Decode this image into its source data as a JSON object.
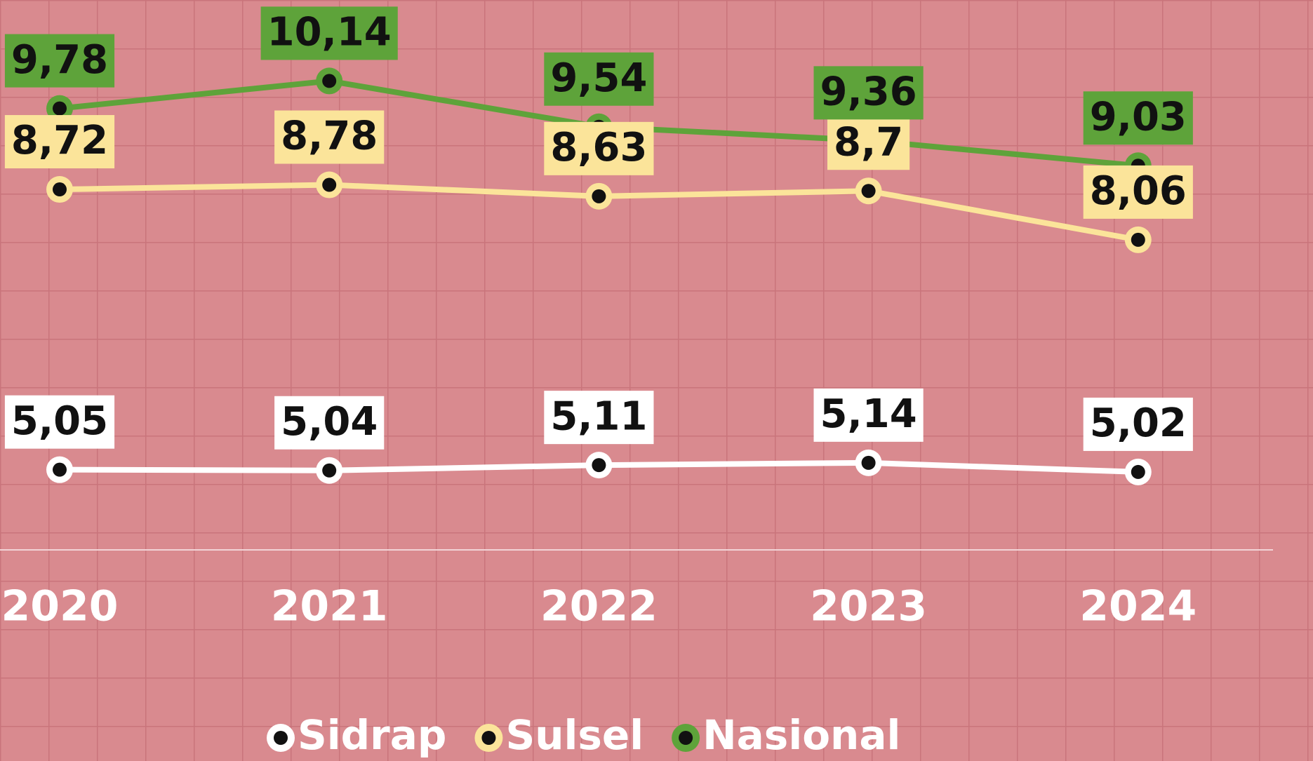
{
  "chart_data": {
    "type": "line",
    "categories": [
      "2020",
      "2021",
      "2022",
      "2023",
      "2024"
    ],
    "ylim": [
      4,
      11.2
    ],
    "series": [
      {
        "name": "Sidrap",
        "color": "#ffffff",
        "values": [
          5.05,
          5.04,
          5.11,
          5.14,
          5.02
        ],
        "value_labels": [
          "5,05",
          "5,04",
          "5,11",
          "5,14",
          "5,02"
        ]
      },
      {
        "name": "Sulsel",
        "color": "#fbe49a",
        "values": [
          8.72,
          8.78,
          8.63,
          8.7,
          8.06
        ],
        "value_labels": [
          "8,72",
          "8,78",
          "8,63",
          "8,7",
          "8,06"
        ]
      },
      {
        "name": "Nasional",
        "color": "#5ea33a",
        "values": [
          9.78,
          10.14,
          9.54,
          9.36,
          9.03
        ],
        "value_labels": [
          "9,78",
          "10,14",
          "9,54",
          "9,36",
          "9,03"
        ]
      }
    ]
  }
}
